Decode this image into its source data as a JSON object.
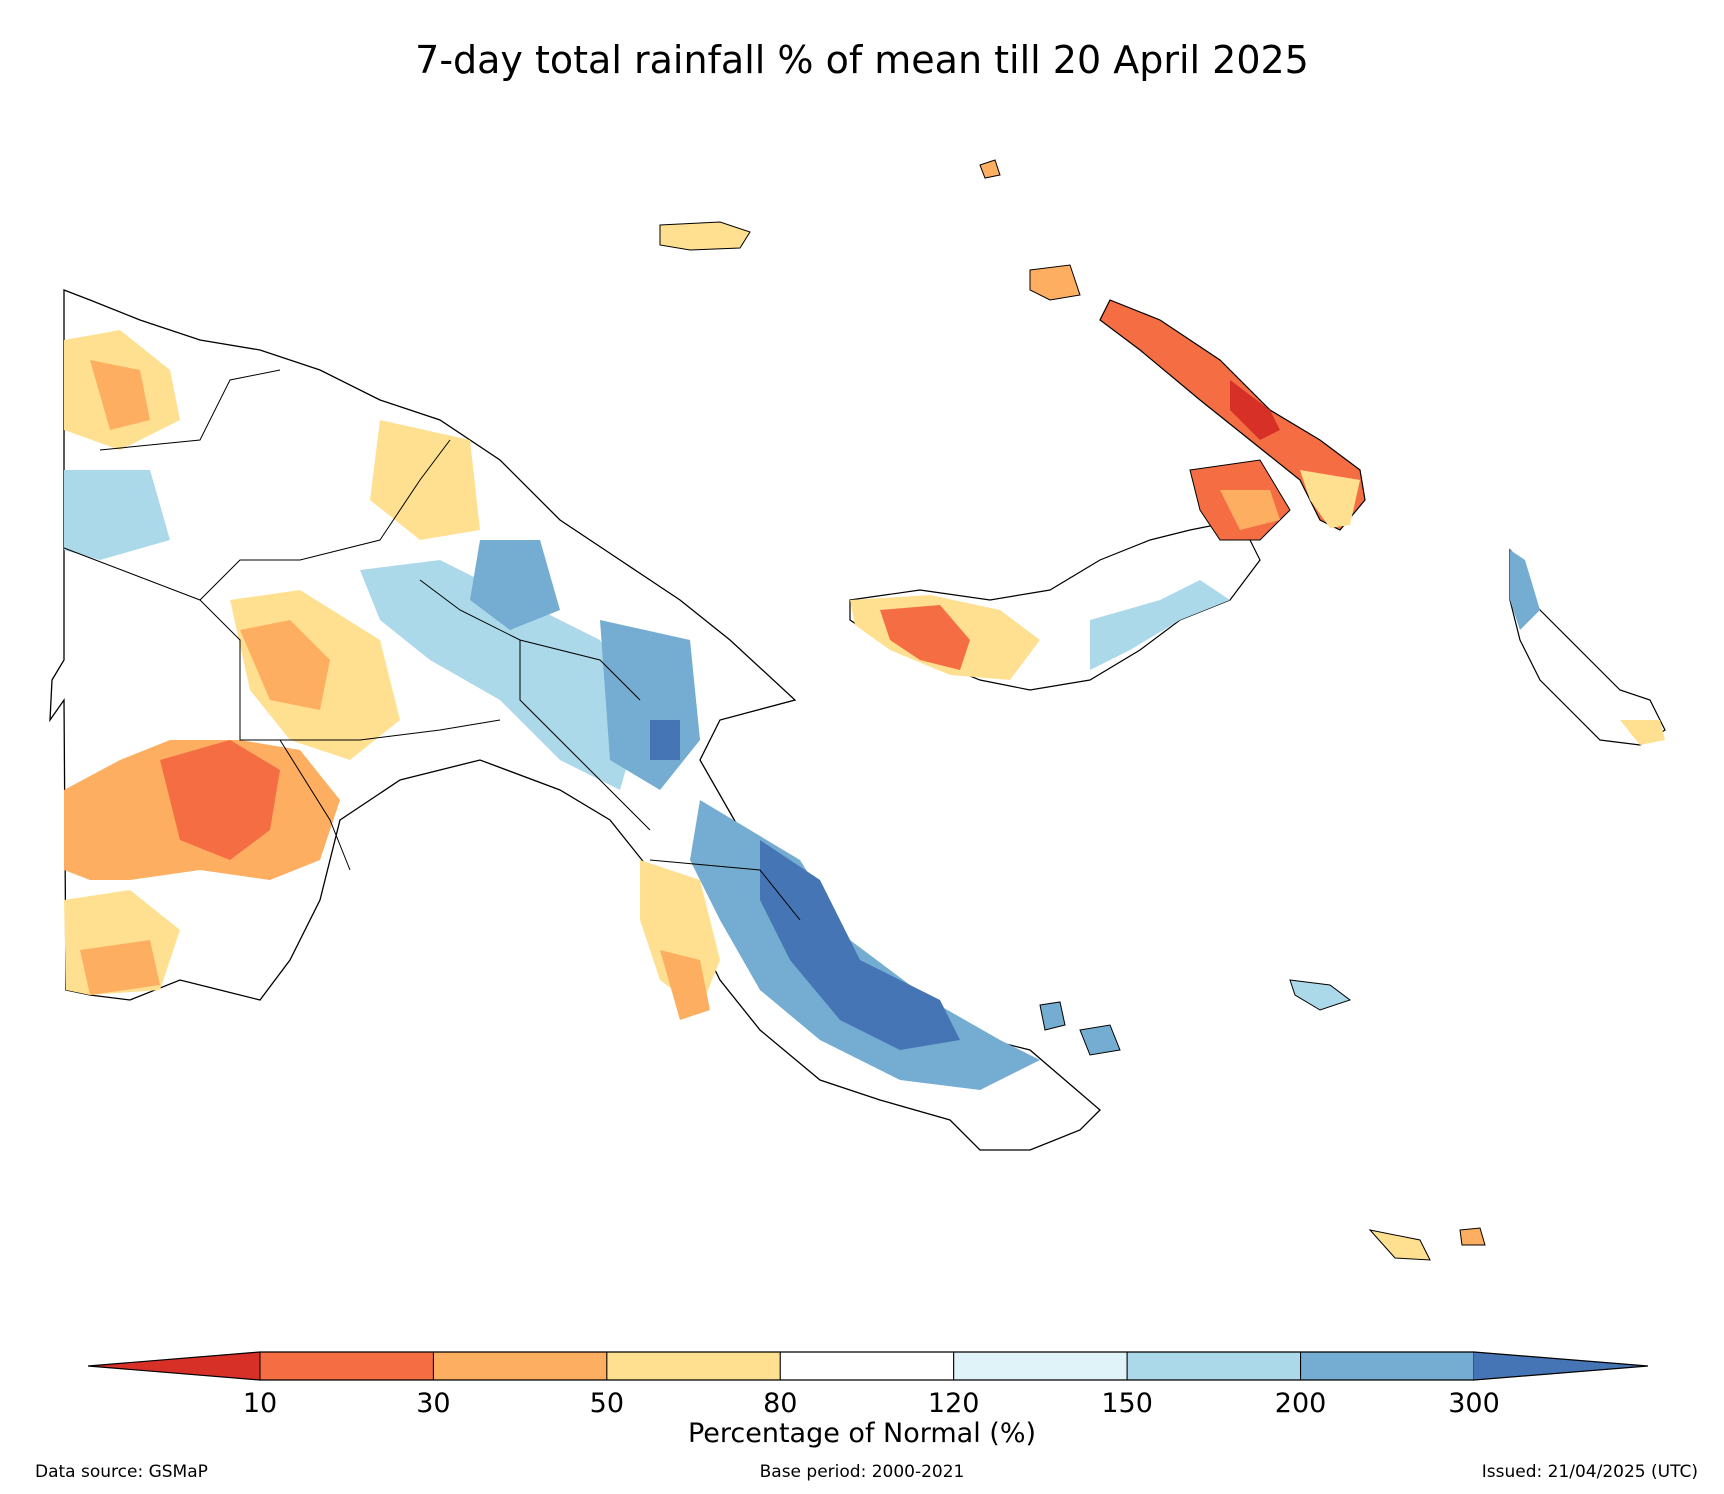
{
  "title": "7-day total rainfall % of mean till 20 April 2025",
  "colorbar": {
    "label": "Percentage of Normal (%)",
    "ticks": [
      "10",
      "30",
      "50",
      "80",
      "120",
      "150",
      "200",
      "300"
    ],
    "under_color": "#d73027",
    "over_color": "#4575b4",
    "colors": [
      "#f46d43",
      "#fdae61",
      "#fee090",
      "#ffffff",
      "#e0f3f8",
      "#abd9e9",
      "#74add1"
    ]
  },
  "footer": {
    "source": "Data source: GSMaP",
    "base_period": "Base period: 2000-2021",
    "issued": "Issued: 21/04/2025 (UTC)"
  }
}
